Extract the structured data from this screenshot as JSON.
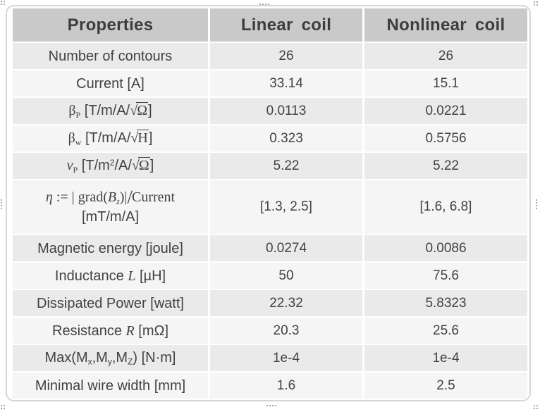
{
  "panel": {
    "border_color": "#d6d6d6",
    "background": "#ffffff"
  },
  "selection_handles": {
    "color": "#a6a6a6",
    "positions": [
      "top-left",
      "top-center",
      "top-right",
      "left-middle",
      "right-middle",
      "bottom-left",
      "bottom-center",
      "bottom-right"
    ]
  },
  "table": {
    "header": {
      "background": "#c9c9c9",
      "text_color": "#3d3d3d",
      "columns": [
        "Properties",
        "Linear coil",
        "Nonlinear coil"
      ]
    },
    "row_colors": {
      "odd": "#eaeaea",
      "even": "#f5f5f5"
    },
    "text_color": "#424242",
    "rows": [
      {
        "property": [
          {
            "t": "Number of contours",
            "s": "p"
          }
        ],
        "linear": "26",
        "nonlinear": "26"
      },
      {
        "property": [
          {
            "t": "Current [A]",
            "s": "p"
          }
        ],
        "linear": "33.14",
        "nonlinear": "15.1"
      },
      {
        "property": [
          {
            "t": "β",
            "s": "sr"
          },
          {
            "t": "P",
            "s": "sbr"
          },
          {
            "t": " [T/m/A/",
            "s": "p"
          },
          {
            "t": "√",
            "s": "rt"
          },
          {
            "t": "Ω",
            "s": "rad"
          },
          {
            "t": "]",
            "s": "p"
          }
        ],
        "linear": "0.0113",
        "nonlinear": "0.0221"
      },
      {
        "property": [
          {
            "t": "β",
            "s": "sr"
          },
          {
            "t": "w",
            "s": "sbr"
          },
          {
            "t": " [T/m/A/",
            "s": "p"
          },
          {
            "t": "√",
            "s": "rt"
          },
          {
            "t": "H",
            "s": "rad"
          },
          {
            "t": "]",
            "s": "p"
          }
        ],
        "linear": "0.323",
        "nonlinear": "0.5756"
      },
      {
        "property": [
          {
            "t": "ν",
            "s": "si"
          },
          {
            "t": "P",
            "s": "sbr"
          },
          {
            "t": " [T/m",
            "s": "p"
          },
          {
            "t": "2",
            "s": "sp"
          },
          {
            "t": "/A/",
            "s": "p"
          },
          {
            "t": "√",
            "s": "rt"
          },
          {
            "t": "Ω",
            "s": "rad"
          },
          {
            "t": "]",
            "s": "p"
          }
        ],
        "linear": "5.22",
        "nonlinear": "5.22"
      },
      {
        "property": [
          {
            "t": "η",
            "s": "si"
          },
          {
            "t": " := ",
            "s": "sr"
          },
          {
            "t": "|",
            "s": "sr"
          },
          {
            "t": " grad(",
            "s": "sr"
          },
          {
            "t": "B",
            "s": "si"
          },
          {
            "t": "z",
            "s": "sbi"
          },
          {
            "t": ")",
            "s": "sr"
          },
          {
            "t": "|",
            "s": "sr"
          },
          {
            "t": "/",
            "s": "tall"
          },
          {
            "t": "Current",
            "s": "sr"
          },
          {
            "t": "\n",
            "s": "br"
          },
          {
            "t": "[mT/m/A]",
            "s": "p"
          }
        ],
        "linear": "[1.3, 2.5]",
        "nonlinear": "[1.6, 6.8]"
      },
      {
        "property": [
          {
            "t": "Magnetic energy [joule]",
            "s": "p"
          }
        ],
        "linear": "0.0274",
        "nonlinear": "0.0086"
      },
      {
        "property": [
          {
            "t": "Inductance ",
            "s": "p"
          },
          {
            "t": "L",
            "s": "si"
          },
          {
            "t": " [µH]",
            "s": "p"
          }
        ],
        "linear": "50",
        "nonlinear": "75.6"
      },
      {
        "property": [
          {
            "t": "Dissipated Power [watt]",
            "s": "p"
          }
        ],
        "linear": "22.32",
        "nonlinear": "5.8323"
      },
      {
        "property": [
          {
            "t": "Resistance ",
            "s": "p"
          },
          {
            "t": "R",
            "s": "si"
          },
          {
            "t": " [mΩ]",
            "s": "p"
          }
        ],
        "linear": "20.3",
        "nonlinear": "25.6"
      },
      {
        "property": [
          {
            "t": "Max(M",
            "s": "p"
          },
          {
            "t": "x",
            "s": "sb"
          },
          {
            "t": ",M",
            "s": "p"
          },
          {
            "t": "y",
            "s": "sb"
          },
          {
            "t": ",M",
            "s": "p"
          },
          {
            "t": "Z",
            "s": "sb"
          },
          {
            "t": ")  [N·m]",
            "s": "p"
          }
        ],
        "linear": "1e-4",
        "nonlinear": "1e-4"
      },
      {
        "property": [
          {
            "t": "Minimal wire width [mm]",
            "s": "p"
          }
        ],
        "linear": "1.6",
        "nonlinear": "2.5"
      }
    ]
  }
}
